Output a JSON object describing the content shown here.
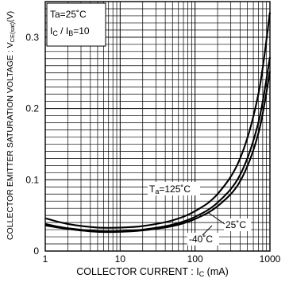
{
  "chart_data": {
    "type": "line",
    "xlabel_prefix": "COLLECTOR  CURRENT : I",
    "xlabel_sub": "C",
    "xlabel_suffix": " (mA)",
    "ylabel_prefix": "COLLECTOR EMITTER SATURATION VOLTAGE : V",
    "ylabel_sub": "CE(sat)",
    "ylabel_suffix": "(V)",
    "x_scale": "log",
    "xlim": [
      1,
      1000
    ],
    "ylim": [
      0,
      0.35
    ],
    "grid": true,
    "x_ticks": [
      {
        "value": 1,
        "label": "1"
      },
      {
        "value": 10,
        "label": "10"
      },
      {
        "value": 100,
        "label": "100"
      },
      {
        "value": 1000,
        "label": "1000"
      }
    ],
    "y_ticks": [
      {
        "value": 0,
        "label": "0"
      },
      {
        "value": 0.1,
        "label": "0.1"
      },
      {
        "value": 0.2,
        "label": "0.2"
      },
      {
        "value": 0.3,
        "label": "0.3"
      }
    ],
    "conditions": {
      "line1": "Ta=25˚C",
      "line2_prefix": "I",
      "line2_sub1": "C",
      "line2_mid": " / I",
      "line2_sub2": "B",
      "line2_suffix": "=10"
    },
    "series": [
      {
        "name": "Ta=125˚C",
        "label_prefix": "T",
        "label_sub": "a",
        "label_suffix": "=125˚C",
        "points": [
          [
            1,
            0.046
          ],
          [
            2,
            0.038
          ],
          [
            5,
            0.033
          ],
          [
            10,
            0.033
          ],
          [
            20,
            0.035
          ],
          [
            50,
            0.043
          ],
          [
            100,
            0.056
          ],
          [
            200,
            0.08
          ],
          [
            400,
            0.13
          ],
          [
            700,
            0.22
          ],
          [
            1000,
            0.335
          ]
        ]
      },
      {
        "name": "25˚C",
        "label": "25˚C",
        "points": [
          [
            1,
            0.038
          ],
          [
            2,
            0.032
          ],
          [
            5,
            0.028
          ],
          [
            10,
            0.028
          ],
          [
            20,
            0.03
          ],
          [
            50,
            0.037
          ],
          [
            100,
            0.048
          ],
          [
            200,
            0.068
          ],
          [
            400,
            0.107
          ],
          [
            700,
            0.18
          ],
          [
            1000,
            0.272
          ]
        ]
      },
      {
        "name": "-40˚C",
        "label": "-40˚C",
        "points": [
          [
            1,
            0.036
          ],
          [
            2,
            0.031
          ],
          [
            5,
            0.027
          ],
          [
            10,
            0.027
          ],
          [
            20,
            0.029
          ],
          [
            50,
            0.035
          ],
          [
            100,
            0.045
          ],
          [
            200,
            0.063
          ],
          [
            400,
            0.098
          ],
          [
            700,
            0.165
          ],
          [
            1000,
            0.252
          ]
        ]
      }
    ]
  }
}
